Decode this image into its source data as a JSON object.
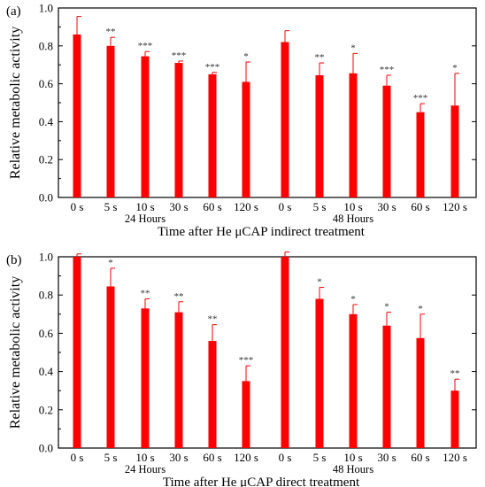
{
  "colors": {
    "bar": "#ff0000",
    "axis": "#000000",
    "error": "#ff0000",
    "annotation": "#333333"
  },
  "chart_data": [
    {
      "type": "bar",
      "panel": "(a)",
      "xlabel": "Time after He μCAP indirect treatment",
      "ylabel": "Relative metabolic activity",
      "ylim": [
        0.0,
        1.0
      ],
      "yticks": [
        "0.0",
        "0.2",
        "0.4",
        "0.6",
        "0.8",
        "1.0"
      ],
      "grid": false,
      "groups": [
        "24 Hours",
        "48 Hours"
      ],
      "categories": [
        "0 s",
        "5 s",
        "10 s",
        "30 s",
        "60 s",
        "120 s",
        "0 s",
        "5 s",
        "10 s",
        "30 s",
        "60 s",
        "120 s"
      ],
      "values": [
        0.86,
        0.8,
        0.745,
        0.71,
        0.65,
        0.61,
        0.82,
        0.645,
        0.655,
        0.59,
        0.45,
        0.485
      ],
      "errors": [
        0.095,
        0.045,
        0.025,
        0.01,
        0.01,
        0.105,
        0.06,
        0.065,
        0.105,
        0.055,
        0.045,
        0.17
      ],
      "significance": [
        "",
        "**",
        "***",
        "***",
        "***",
        "*",
        "",
        "**",
        "*",
        "***",
        "***",
        "*"
      ]
    },
    {
      "type": "bar",
      "panel": "(b)",
      "xlabel": "Time after He μCAP direct treatment",
      "ylabel": "Relative metabolic activity",
      "ylim": [
        0.0,
        1.0
      ],
      "yticks": [
        "0.0",
        "0.2",
        "0.4",
        "0.6",
        "0.8",
        "1.0"
      ],
      "grid": false,
      "groups": [
        "24 Hours",
        "48 Hours"
      ],
      "categories": [
        "0 s",
        "5 s",
        "10 s",
        "30 s",
        "60 s",
        "120 s",
        "0 s",
        "5 s",
        "10 s",
        "30 s",
        "60 s",
        "120 s"
      ],
      "values": [
        1.0,
        0.845,
        0.73,
        0.71,
        0.56,
        0.35,
        1.0,
        0.78,
        0.7,
        0.64,
        0.575,
        0.3
      ],
      "errors": [
        0.015,
        0.095,
        0.05,
        0.055,
        0.085,
        0.08,
        0.025,
        0.06,
        0.05,
        0.07,
        0.125,
        0.06
      ],
      "significance": [
        "",
        "*",
        "**",
        "**",
        "**",
        "***",
        "",
        "*",
        "*",
        "*",
        "*",
        "**"
      ]
    }
  ]
}
